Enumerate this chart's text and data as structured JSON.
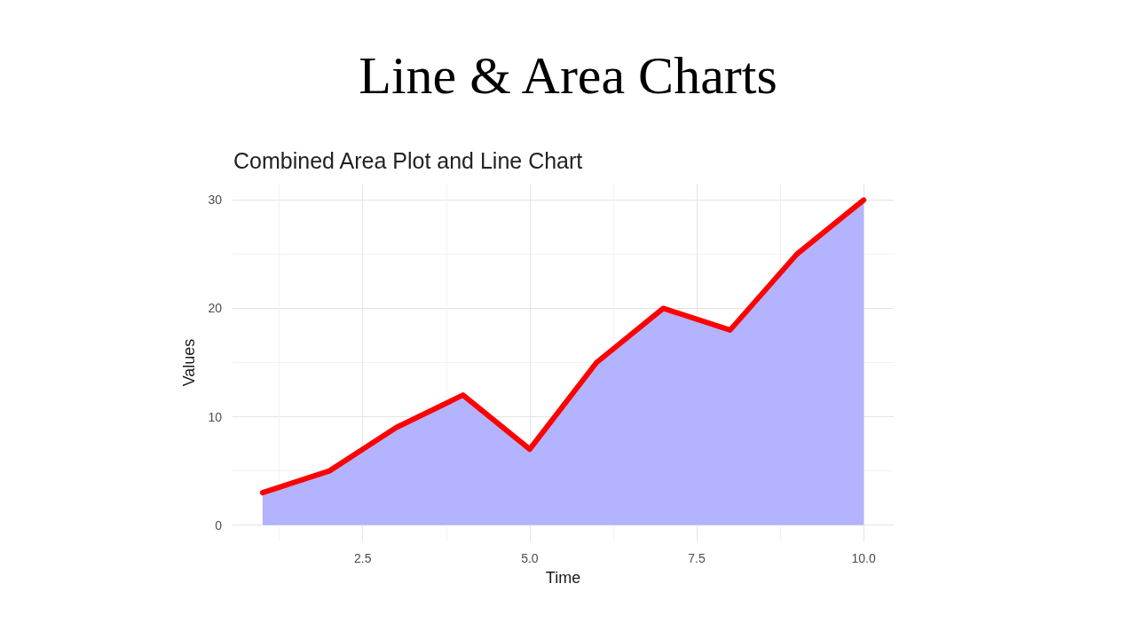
{
  "chart_data": {
    "type": "line",
    "title": "Line & Area Charts",
    "subtitle": "Combined Area Plot and Line Chart",
    "xlabel": "Time",
    "ylabel": "Values",
    "x": [
      1,
      2,
      3,
      4,
      5,
      6,
      7,
      8,
      9,
      10
    ],
    "series": [
      {
        "type": "area",
        "color": "#b3b3ff",
        "values": [
          3,
          5,
          9,
          12,
          7,
          15,
          20,
          18,
          25,
          30
        ]
      },
      {
        "color": "#ff0000",
        "values": [
          3,
          5,
          9,
          12,
          7,
          15,
          20,
          18,
          25,
          30
        ]
      }
    ],
    "xlim": [
      0.55,
      10.45
    ],
    "ylim": [
      -1.5,
      31.5
    ],
    "xticks": [
      {
        "value": 1.25,
        "label": null
      },
      2.5,
      {
        "value": 3.75,
        "label": null
      },
      {
        "value": 5,
        "label": "5.0"
      },
      {
        "value": 6.25,
        "label": null
      },
      7.5,
      {
        "value": 8.75,
        "label": null
      },
      {
        "value": 10,
        "label": "10.0"
      }
    ],
    "yticks": [
      0,
      {
        "value": 5,
        "label": null
      },
      10,
      {
        "value": 15,
        "label": null
      },
      20,
      {
        "value": 25,
        "label": null
      },
      30
    ],
    "grid": true,
    "marker": "none",
    "line_style": "solid"
  }
}
